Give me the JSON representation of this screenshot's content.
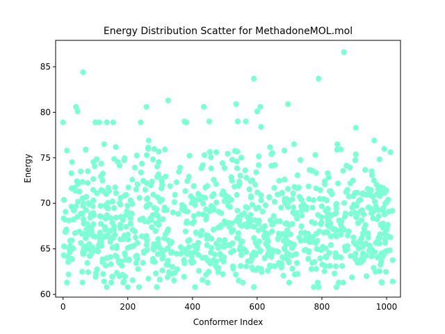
{
  "chart_data": {
    "type": "scatter",
    "title": "Energy Distribution Scatter for MethadoneMOL.mol",
    "xlabel": "Conformer Index",
    "ylabel": "Energy",
    "xlim": [
      -23,
      1043
    ],
    "ylim": [
      59.7,
      87.9
    ],
    "x_ticks": [
      0,
      200,
      400,
      600,
      800,
      1000
    ],
    "y_ticks": [
      60,
      65,
      70,
      75,
      80,
      85
    ],
    "point_color": "#7fffd4",
    "grid": false,
    "legend": "none",
    "n_points": 1024,
    "highlights": [
      [
        0,
        78.9
      ],
      [
        12,
        75.8
      ],
      [
        40,
        80.6
      ],
      [
        45,
        80.1
      ],
      [
        62,
        84.4
      ],
      [
        70,
        75.9
      ],
      [
        100,
        78.9
      ],
      [
        112,
        78.9
      ],
      [
        135,
        78.9
      ],
      [
        155,
        78.9
      ],
      [
        240,
        78.9
      ],
      [
        258,
        80.6
      ],
      [
        265,
        76.9
      ],
      [
        325,
        81.3
      ],
      [
        375,
        79.0
      ],
      [
        382,
        78.9
      ],
      [
        435,
        80.6
      ],
      [
        452,
        79.0
      ],
      [
        535,
        80.9
      ],
      [
        540,
        79.0
      ],
      [
        565,
        79.0
      ],
      [
        590,
        83.7
      ],
      [
        600,
        80.1
      ],
      [
        610,
        80.6
      ],
      [
        612,
        78.4
      ],
      [
        695,
        80.9
      ],
      [
        790,
        83.7
      ],
      [
        868,
        86.6
      ],
      [
        905,
        78.3
      ],
      [
        962,
        76.9
      ],
      [
        135,
        60.8
      ],
      [
        200,
        60.8
      ],
      [
        235,
        60.8
      ],
      [
        290,
        60.8
      ],
      [
        408,
        60.8
      ],
      [
        590,
        60.8
      ],
      [
        775,
        60.8
      ],
      [
        790,
        60.8
      ],
      [
        845,
        60.8
      ]
    ],
    "density_bands": [
      {
        "center": 64.0,
        "spread": 1.6,
        "weight": 0.3
      },
      {
        "center": 66.5,
        "spread": 1.6,
        "weight": 0.3
      },
      {
        "center": 69.5,
        "spread": 1.5,
        "weight": 0.22
      },
      {
        "center": 72.2,
        "spread": 1.3,
        "weight": 0.13
      },
      {
        "center": 75.3,
        "spread": 0.8,
        "weight": 0.05
      }
    ]
  }
}
